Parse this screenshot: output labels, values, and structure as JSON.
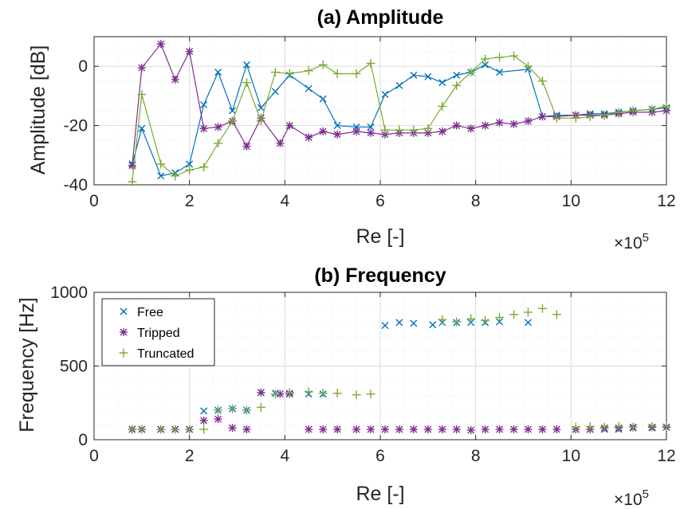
{
  "chart_data": [
    {
      "type": "line",
      "title": "(a) Amplitude",
      "xlabel": "Re [-]",
      "ylabel": "Amplitude [dB]",
      "x_multiplier_base": "×10",
      "x_multiplier_exp": "5",
      "xlim": [
        0,
        12
      ],
      "ylim": [
        -40,
        10
      ],
      "xticks": [
        0,
        2,
        4,
        6,
        8,
        10,
        12
      ],
      "yticks": [
        -40,
        -20,
        0
      ],
      "grid": true,
      "series": [
        {
          "name": "Free",
          "color": "#0072BD",
          "marker": "x",
          "x": [
            0.8,
            1.0,
            1.4,
            1.7,
            2.0,
            2.3,
            2.6,
            2.9,
            3.2,
            3.5,
            3.8,
            4.1,
            4.5,
            4.8,
            5.1,
            5.5,
            5.8,
            6.1,
            6.4,
            6.7,
            7.0,
            7.3,
            7.6,
            7.9,
            8.2,
            8.5,
            9.1,
            9.4,
            9.7,
            10.1,
            10.4,
            10.7,
            11.0,
            11.3,
            11.7,
            12.0
          ],
          "y": [
            -33,
            -21,
            -37,
            -36,
            -33,
            -13,
            -2,
            -15,
            0.5,
            -14,
            -8.5,
            -3,
            -7.5,
            -11,
            -20,
            -20.5,
            -20.5,
            -9.5,
            -6.5,
            -3,
            -3.5,
            -5.5,
            -3,
            -2,
            0.5,
            -2,
            -1,
            -17,
            -16.5,
            -16.5,
            -16,
            -16,
            -15.5,
            -15,
            -14.5,
            -14
          ]
        },
        {
          "name": "Tripped",
          "color": "#7E2F8E",
          "marker": "*",
          "x": [
            0.8,
            1.0,
            1.4,
            1.7,
            2.0,
            2.3,
            2.6,
            2.9,
            3.2,
            3.5,
            3.9,
            4.1,
            4.5,
            4.8,
            5.1,
            5.5,
            5.8,
            6.1,
            6.4,
            6.7,
            7.0,
            7.3,
            7.6,
            7.9,
            8.2,
            8.5,
            8.8,
            9.1,
            9.4,
            9.7,
            10.1,
            10.4,
            10.7,
            11.0,
            11.3,
            11.7,
            12.0
          ],
          "y": [
            -33.5,
            -0.5,
            7.5,
            -4.5,
            5,
            -21,
            -20.5,
            -18.5,
            -27,
            -17.5,
            -26,
            -20,
            -24,
            -22,
            -23,
            -22,
            -22.5,
            -23,
            -22.5,
            -22.5,
            -22.5,
            -22,
            -20,
            -21,
            -20,
            -19,
            -19.5,
            -18.5,
            -17,
            -17,
            -16.5,
            -16.5,
            -16.5,
            -16,
            -15.5,
            -15.5,
            -15
          ]
        },
        {
          "name": "Truncated",
          "color": "#77AC30",
          "marker": "+",
          "x": [
            0.8,
            1.0,
            1.4,
            1.7,
            2.0,
            2.3,
            2.6,
            2.9,
            3.2,
            3.5,
            3.8,
            4.1,
            4.5,
            4.8,
            5.1,
            5.5,
            5.8,
            6.1,
            6.4,
            6.7,
            7.0,
            7.3,
            7.6,
            7.9,
            8.2,
            8.5,
            8.8,
            9.1,
            9.4,
            9.7,
            10.1,
            10.4,
            10.7,
            11.0,
            11.3,
            11.7,
            12.0
          ],
          "y": [
            -39,
            -9.5,
            -33,
            -37,
            -35,
            -34,
            -26,
            -18.5,
            -5.5,
            -18.5,
            -2,
            -2.5,
            -1.5,
            0.5,
            -2.5,
            -2.5,
            1,
            -21.5,
            -21.5,
            -21.5,
            -21,
            -13.5,
            -6.5,
            -2,
            2.5,
            3,
            3.5,
            0,
            -5,
            -17.5,
            -17.5,
            -17,
            -16.5,
            -15.5,
            -15,
            -14.5,
            -13.5
          ]
        }
      ]
    },
    {
      "type": "scatter",
      "title": "(b) Frequency",
      "xlabel": "Re [-]",
      "ylabel": "Frequency [Hz]",
      "x_multiplier_base": "×10",
      "x_multiplier_exp": "5",
      "xlim": [
        0,
        12
      ],
      "ylim": [
        0,
        1000
      ],
      "xticks": [
        0,
        2,
        4,
        6,
        8,
        10,
        12
      ],
      "yticks": [
        0,
        500,
        1000
      ],
      "grid": true,
      "legend": "top-left",
      "series": [
        {
          "name": "Free",
          "color": "#0072BD",
          "marker": "x",
          "x": [
            0.8,
            1.0,
            1.4,
            1.7,
            2.0,
            2.3,
            2.6,
            2.9,
            3.2,
            3.5,
            3.8,
            4.1,
            4.5,
            4.8,
            6.1,
            6.4,
            6.7,
            7.1,
            7.3,
            7.6,
            7.9,
            8.2,
            8.5,
            9.1,
            10.1,
            10.4,
            10.7,
            11.0,
            11.3,
            11.7,
            12.0
          ],
          "y": [
            70,
            70,
            70,
            70,
            70,
            195,
            200,
            210,
            200,
            320,
            315,
            315,
            310,
            310,
            775,
            795,
            790,
            780,
            795,
            795,
            795,
            795,
            800,
            795,
            70,
            70,
            70,
            70,
            80,
            80,
            85
          ]
        },
        {
          "name": "Tripped",
          "color": "#7E2F8E",
          "marker": "*",
          "x": [
            0.8,
            1.0,
            1.4,
            1.7,
            2.0,
            2.3,
            2.6,
            2.9,
            3.2,
            3.5,
            3.9,
            4.1,
            4.5,
            4.8,
            5.1,
            5.5,
            5.8,
            6.1,
            6.4,
            6.7,
            7.0,
            7.3,
            7.6,
            7.9,
            8.2,
            8.5,
            8.8,
            9.1,
            9.4,
            9.7,
            10.1,
            10.4,
            10.7,
            11.0,
            11.3,
            11.7,
            12.0
          ],
          "y": [
            70,
            70,
            70,
            70,
            70,
            130,
            140,
            80,
            70,
            320,
            310,
            310,
            70,
            70,
            70,
            70,
            70,
            70,
            70,
            70,
            70,
            70,
            70,
            65,
            70,
            70,
            70,
            70,
            70,
            70,
            70,
            70,
            80,
            80,
            85,
            85,
            85
          ]
        },
        {
          "name": "Truncated",
          "color": "#77AC30",
          "marker": "+",
          "x": [
            0.8,
            1.0,
            1.4,
            1.7,
            2.0,
            2.3,
            2.6,
            2.9,
            3.2,
            3.5,
            3.8,
            4.1,
            4.5,
            4.8,
            5.1,
            5.5,
            5.8,
            7.3,
            7.6,
            7.9,
            8.2,
            8.5,
            8.8,
            9.1,
            9.4,
            9.7,
            10.1,
            10.4,
            10.7,
            11.0,
            11.3,
            11.7,
            12.0
          ],
          "y": [
            70,
            70,
            70,
            70,
            70,
            70,
            200,
            210,
            200,
            220,
            310,
            320,
            325,
            315,
            315,
            305,
            310,
            815,
            800,
            820,
            810,
            830,
            850,
            865,
            890,
            850,
            85,
            90,
            85,
            90,
            85,
            90,
            90
          ]
        }
      ]
    }
  ]
}
